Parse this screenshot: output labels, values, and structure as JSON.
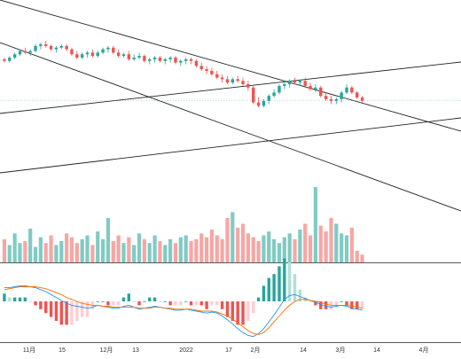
{
  "chart_data": {
    "type": "candlestick",
    "x_axis_ticks": [
      "11月",
      "15",
      "12月",
      "13",
      "2022",
      "17",
      "2月",
      "14",
      "3月",
      "14",
      "4月"
    ],
    "colors": {
      "up": "#26a69a",
      "down": "#ef5350",
      "volume_up": "#80cbc4",
      "volume_down": "#f7a6a4",
      "macd_line": "#2196f3",
      "signal_line": "#ff6d00",
      "hist_pos_strong": "#26a69a",
      "hist_pos_weak": "#b2dfdb",
      "hist_neg_strong": "#ef5350",
      "hist_neg_weak": "#ffcdd2",
      "trendline": "#222222",
      "last_price_line": "#26a69a"
    },
    "panes": [
      {
        "name": "price",
        "ylim": [
          40,
          120
        ],
        "series": [
          {
            "ohlc": [
              [
                95,
                96,
                93,
                94
              ],
              [
                94,
                97,
                93,
                96
              ],
              [
                96,
                99,
                95,
                98
              ],
              [
                98,
                101,
                97,
                100
              ],
              [
                100,
                102,
                98,
                99
              ],
              [
                99,
                101,
                97,
                100
              ],
              [
                100,
                104,
                99,
                103
              ],
              [
                103,
                105,
                101,
                104
              ],
              [
                104,
                106,
                102,
                103
              ],
              [
                103,
                104,
                100,
                101
              ],
              [
                101,
                103,
                99,
                102
              ],
              [
                102,
                104,
                101,
                103
              ],
              [
                103,
                104,
                100,
                101
              ],
              [
                101,
                102,
                97,
                98
              ],
              [
                98,
                100,
                95,
                96
              ],
              [
                96,
                99,
                95,
                98
              ],
              [
                98,
                100,
                96,
                99
              ],
              [
                99,
                101,
                96,
                97
              ],
              [
                97,
                100,
                96,
                99
              ],
              [
                99,
                102,
                98,
                101
              ],
              [
                101,
                103,
                99,
                102
              ],
              [
                102,
                103,
                98,
                99
              ],
              [
                99,
                101,
                96,
                97
              ],
              [
                97,
                99,
                96,
                98
              ],
              [
                98,
                100,
                94,
                95
              ],
              [
                95,
                98,
                94,
                96
              ],
              [
                96,
                99,
                95,
                97
              ],
              [
                97,
                98,
                93,
                94
              ],
              [
                94,
                96,
                92,
                95
              ],
              [
                95,
                97,
                93,
                96
              ],
              [
                96,
                97,
                93,
                94
              ],
              [
                94,
                96,
                92,
                95
              ],
              [
                95,
                97,
                93,
                96
              ],
              [
                96,
                97,
                92,
                93
              ],
              [
                93,
                95,
                91,
                94
              ],
              [
                94,
                96,
                92,
                95
              ],
              [
                95,
                96,
                92,
                94
              ],
              [
                94,
                95,
                90,
                91
              ],
              [
                91,
                93,
                88,
                89
              ],
              [
                89,
                91,
                86,
                88
              ],
              [
                88,
                90,
                85,
                86
              ],
              [
                86,
                88,
                83,
                84
              ],
              [
                84,
                86,
                81,
                83
              ],
              [
                83,
                85,
                80,
                81
              ],
              [
                81,
                84,
                80,
                83
              ],
              [
                83,
                85,
                81,
                82
              ],
              [
                82,
                84,
                79,
                80
              ],
              [
                80,
                82,
                76,
                78
              ],
              [
                78,
                79,
                68,
                69
              ],
              [
                69,
                72,
                66,
                67
              ],
              [
                67,
                71,
                66,
                70
              ],
              [
                70,
                74,
                68,
                73
              ],
              [
                73,
                77,
                72,
                75
              ],
              [
                75,
                80,
                74,
                79
              ],
              [
                79,
                82,
                77,
                80
              ],
              [
                80,
                83,
                78,
                82
              ],
              [
                82,
                84,
                80,
                81
              ],
              [
                81,
                83,
                79,
                82
              ],
              [
                82,
                84,
                78,
                79
              ],
              [
                79,
                81,
                76,
                77
              ],
              [
                77,
                80,
                75,
                78
              ],
              [
                78,
                79,
                72,
                73
              ],
              [
                73,
                75,
                70,
                71
              ],
              [
                71,
                73,
                68,
                70
              ],
              [
                70,
                72,
                68,
                71
              ],
              [
                71,
                76,
                69,
                75
              ],
              [
                75,
                80,
                74,
                78
              ],
              [
                78,
                79,
                74,
                75
              ],
              [
                75,
                76,
                71,
                72
              ],
              [
                72,
                73,
                69,
                70
              ]
            ]
          }
        ]
      },
      {
        "name": "volume",
        "series": [
          {
            "values": [
              24,
              18,
              30,
              20,
              22,
              35,
              16,
              26,
              20,
              28,
              18,
              22,
              30,
              26,
              20,
              24,
              28,
              18,
              32,
              24,
              46,
              22,
              28,
              20,
              26,
              18,
              30,
              24,
              20,
              28,
              22,
              18,
              24,
              20,
              26,
              28,
              22,
              24,
              30,
              26,
              34,
              28,
              24,
              46,
              52,
              36,
              40,
              30,
              26,
              22,
              28,
              32,
              24,
              20,
              26,
              30,
              24,
              34,
              40,
              28,
              78,
              38,
              32,
              46,
              40,
              30,
              28,
              36,
              12,
              8
            ]
          }
        ]
      },
      {
        "name": "macd",
        "series": [
          {
            "values": [
              1.4,
              1.4,
              1.5,
              1.6,
              1.6,
              1.5,
              1.4,
              1.2,
              1.0,
              0.7,
              0.4,
              0.1,
              -0.2,
              -0.4,
              -0.5,
              -0.6,
              -0.7,
              -0.6,
              -0.4,
              -0.5,
              -0.6,
              -0.7,
              -0.7,
              -0.5,
              -0.4,
              -0.6,
              -0.8,
              -0.7,
              -0.6,
              -0.5,
              -0.6,
              -0.7,
              -0.8,
              -0.9,
              -0.9,
              -0.8,
              -0.9,
              -1.0,
              -1.1,
              -1.2,
              -1.1,
              -1.2,
              -1.5,
              -1.9,
              -2.3,
              -2.8,
              -3.2,
              -3.5,
              -3.6,
              -3.3,
              -2.8,
              -2.1,
              -1.4,
              -0.6,
              0.2,
              0.6,
              0.7,
              0.5,
              0.3,
              0.1,
              -0.1,
              -0.3,
              -0.5,
              -0.6,
              -0.5,
              -0.4,
              -0.5,
              -0.7,
              -0.8,
              -0.9
            ]
          },
          {
            "values": [
              1.2,
              1.3,
              1.4,
              1.5,
              1.5,
              1.5,
              1.5,
              1.4,
              1.3,
              1.1,
              0.9,
              0.7,
              0.4,
              0.2,
              0.0,
              -0.2,
              -0.3,
              -0.4,
              -0.4,
              -0.5,
              -0.5,
              -0.6,
              -0.6,
              -0.6,
              -0.6,
              -0.6,
              -0.7,
              -0.7,
              -0.7,
              -0.6,
              -0.6,
              -0.7,
              -0.7,
              -0.8,
              -0.8,
              -0.8,
              -0.8,
              -0.9,
              -1.0,
              -1.0,
              -1.0,
              -1.1,
              -1.3,
              -1.5,
              -1.8,
              -2.2,
              -2.6,
              -3.0,
              -3.3,
              -3.4,
              -3.2,
              -2.7,
              -2.1,
              -1.5,
              -0.9,
              -0.4,
              0.0,
              0.2,
              0.2,
              0.1,
              0.0,
              -0.1,
              -0.3,
              -0.4,
              -0.4,
              -0.4,
              -0.4,
              -0.5,
              -0.6,
              -0.7
            ]
          }
        ]
      }
    ]
  }
}
